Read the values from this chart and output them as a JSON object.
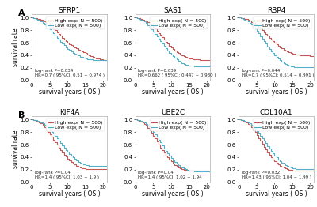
{
  "panels": [
    {
      "row": 0,
      "col": 0,
      "title": "SFRP1",
      "panel_label": "A",
      "annotation": "log-rank P=0.034\nHR=0.7 ( 95%CI: 0.51 ~ 0.974 )",
      "high_color": "#c0504d",
      "low_color": "#4bacc6",
      "legend": [
        "High exp( N = 500)",
        "Low exp( N = 500)"
      ],
      "high_curve_x": [
        0,
        0.5,
        1,
        1.5,
        2,
        2.5,
        3,
        3.5,
        4,
        4.5,
        5,
        5.5,
        6,
        6.5,
        7,
        7.5,
        8,
        8.5,
        9,
        9.5,
        10,
        10.5,
        11,
        11.5,
        12,
        12.5,
        13,
        13.5,
        14,
        14.5,
        15,
        15.5,
        16,
        16.5,
        17,
        17.5,
        18,
        18.5,
        19,
        19.5,
        20,
        21
      ],
      "high_curve_y": [
        1.0,
        0.995,
        0.99,
        0.983,
        0.975,
        0.965,
        0.952,
        0.937,
        0.92,
        0.9,
        0.878,
        0.854,
        0.828,
        0.8,
        0.77,
        0.74,
        0.71,
        0.68,
        0.65,
        0.625,
        0.6,
        0.578,
        0.558,
        0.54,
        0.522,
        0.506,
        0.49,
        0.475,
        0.46,
        0.445,
        0.43,
        0.415,
        0.4,
        0.385,
        0.372,
        0.36,
        0.35,
        0.342,
        0.335,
        0.33,
        0.325,
        0.32
      ],
      "low_curve_x": [
        0,
        0.5,
        1,
        1.5,
        2,
        2.5,
        3,
        3.5,
        4,
        4.5,
        5,
        5.5,
        6,
        6.5,
        7,
        7.5,
        8,
        8.5,
        9,
        9.5,
        10,
        10.5,
        11,
        11.5,
        12,
        12.5,
        13,
        13.5,
        14,
        14.5,
        15,
        15.5,
        16,
        16.5,
        17,
        17.5,
        18,
        18.5,
        19,
        19.5,
        20,
        21
      ],
      "low_curve_y": [
        1.0,
        0.993,
        0.984,
        0.972,
        0.957,
        0.939,
        0.918,
        0.895,
        0.869,
        0.841,
        0.811,
        0.78,
        0.748,
        0.715,
        0.682,
        0.649,
        0.617,
        0.586,
        0.557,
        0.53,
        0.504,
        0.481,
        0.459,
        0.44,
        0.422,
        0.406,
        0.392,
        0.379,
        0.367,
        0.357,
        0.348,
        0.341,
        0.335,
        0.331,
        0.328,
        0.326,
        0.324,
        0.323,
        0.322,
        0.321,
        0.32,
        0.319
      ]
    },
    {
      "row": 0,
      "col": 1,
      "title": "SAS1",
      "panel_label": "",
      "annotation": "log-rank P=0.039\nHR=0.662 ( 95%CI: 0.447 ~ 0.980 )",
      "high_color": "#c0504d",
      "low_color": "#4bacc6",
      "legend": [
        "High exp( N = 500)",
        "Low exp( N = 500)"
      ],
      "high_curve_x": [
        0,
        0.5,
        1,
        1.5,
        2,
        2.5,
        3,
        3.5,
        4,
        4.5,
        5,
        5.5,
        6,
        6.5,
        7,
        7.5,
        8,
        8.5,
        9,
        9.5,
        10,
        10.5,
        11,
        11.5,
        12,
        12.5,
        13,
        13.5,
        14,
        14.5,
        15,
        15.5,
        16,
        16.5,
        17,
        17.5,
        18,
        18.5,
        19,
        19.5,
        20,
        21
      ],
      "high_curve_y": [
        1.0,
        0.995,
        0.99,
        0.982,
        0.972,
        0.959,
        0.943,
        0.924,
        0.902,
        0.877,
        0.85,
        0.821,
        0.79,
        0.757,
        0.723,
        0.688,
        0.653,
        0.619,
        0.586,
        0.555,
        0.525,
        0.498,
        0.473,
        0.45,
        0.43,
        0.412,
        0.396,
        0.382,
        0.37,
        0.36,
        0.351,
        0.344,
        0.338,
        0.334,
        0.331,
        0.329,
        0.328,
        0.327,
        0.327,
        0.326,
        0.326,
        0.325
      ],
      "low_curve_x": [
        0,
        0.5,
        1,
        1.5,
        2,
        2.5,
        3,
        3.5,
        4,
        4.5,
        5,
        5.5,
        6,
        6.5,
        7,
        7.5,
        8,
        8.5,
        9,
        9.5,
        10,
        10.5,
        11,
        11.5,
        12,
        12.5,
        13,
        13.5,
        14,
        14.5,
        15,
        15.5,
        16,
        16.5,
        17,
        17.5,
        18,
        18.5,
        19,
        19.5,
        20,
        21
      ],
      "low_curve_y": [
        1.0,
        0.993,
        0.984,
        0.971,
        0.955,
        0.935,
        0.91,
        0.882,
        0.851,
        0.817,
        0.781,
        0.743,
        0.704,
        0.664,
        0.624,
        0.584,
        0.545,
        0.508,
        0.473,
        0.44,
        0.409,
        0.381,
        0.355,
        0.332,
        0.311,
        0.293,
        0.277,
        0.264,
        0.253,
        0.244,
        0.237,
        0.232,
        0.229,
        0.227,
        0.226,
        0.225,
        0.225,
        0.224,
        0.224,
        0.223,
        0.223,
        0.222
      ]
    },
    {
      "row": 0,
      "col": 2,
      "title": "RBP4",
      "panel_label": "",
      "annotation": "log-rank P=0.044\nHR=0.7 ( 95%CI: 0.514 ~ 0.991 )",
      "high_color": "#c0504d",
      "low_color": "#4bacc6",
      "legend": [
        "High exp( N = 500)",
        "Low exp( N = 500)"
      ],
      "high_curve_x": [
        0,
        0.5,
        1,
        1.5,
        2,
        2.5,
        3,
        3.5,
        4,
        4.5,
        5,
        5.5,
        6,
        6.5,
        7,
        7.5,
        8,
        8.5,
        9,
        9.5,
        10,
        10.5,
        11,
        11.5,
        12,
        12.5,
        13,
        13.5,
        14,
        14.5,
        15,
        15.5,
        16,
        16.5,
        17,
        17.5,
        18,
        18.5,
        19,
        19.5,
        20,
        21
      ],
      "high_curve_y": [
        1.0,
        0.995,
        0.99,
        0.983,
        0.974,
        0.963,
        0.949,
        0.933,
        0.915,
        0.895,
        0.873,
        0.849,
        0.824,
        0.797,
        0.769,
        0.74,
        0.711,
        0.682,
        0.653,
        0.626,
        0.599,
        0.574,
        0.551,
        0.529,
        0.509,
        0.491,
        0.475,
        0.46,
        0.447,
        0.436,
        0.426,
        0.418,
        0.412,
        0.407,
        0.403,
        0.4,
        0.397,
        0.395,
        0.393,
        0.392,
        0.391,
        0.39
      ],
      "low_curve_x": [
        0,
        0.5,
        1,
        1.5,
        2,
        2.5,
        3,
        3.5,
        4,
        4.5,
        5,
        5.5,
        6,
        6.5,
        7,
        7.5,
        8,
        8.5,
        9,
        9.5,
        10,
        10.5,
        11,
        11.5,
        12,
        12.5,
        13,
        13.5,
        14,
        14.5,
        15,
        15.5,
        16,
        16.5,
        17,
        17.5,
        18,
        18.5,
        19,
        19.5,
        20,
        21
      ],
      "low_curve_y": [
        1.0,
        0.993,
        0.984,
        0.972,
        0.956,
        0.937,
        0.913,
        0.886,
        0.855,
        0.821,
        0.784,
        0.746,
        0.706,
        0.665,
        0.624,
        0.583,
        0.543,
        0.504,
        0.467,
        0.432,
        0.399,
        0.369,
        0.342,
        0.317,
        0.295,
        0.276,
        0.26,
        0.246,
        0.235,
        0.226,
        0.219,
        0.214,
        0.211,
        0.209,
        0.208,
        0.208,
        0.208,
        0.207,
        0.207,
        0.207,
        0.207,
        0.207
      ]
    },
    {
      "row": 1,
      "col": 0,
      "title": "KIF4A",
      "panel_label": "B",
      "annotation": "log-rank P=0.04\nHR=1.4 ( 95%CI: 1.03 ~ 1.9 )",
      "high_color": "#c0504d",
      "low_color": "#4bacc6",
      "legend": [
        "High exp( N = 500)",
        "Low exp( N = 500)"
      ],
      "high_curve_x": [
        0,
        0.5,
        1,
        1.5,
        2,
        2.5,
        3,
        3.5,
        4,
        4.5,
        5,
        5.5,
        6,
        6.5,
        7,
        7.5,
        8,
        8.5,
        9,
        9.5,
        10,
        10.5,
        11,
        11.5,
        12,
        12.5,
        13,
        13.5,
        14,
        14.5,
        15,
        15.5,
        16,
        16.5,
        17,
        17.5,
        18,
        18.5,
        19,
        19.5,
        20,
        21
      ],
      "high_curve_y": [
        1.0,
        0.993,
        0.984,
        0.972,
        0.956,
        0.935,
        0.91,
        0.88,
        0.846,
        0.808,
        0.768,
        0.726,
        0.682,
        0.638,
        0.595,
        0.553,
        0.512,
        0.474,
        0.438,
        0.405,
        0.374,
        0.346,
        0.321,
        0.299,
        0.279,
        0.262,
        0.248,
        0.236,
        0.226,
        0.219,
        0.213,
        0.209,
        0.207,
        0.205,
        0.204,
        0.204,
        0.203,
        0.203,
        0.203,
        0.203,
        0.203,
        0.203
      ],
      "low_curve_x": [
        0,
        0.5,
        1,
        1.5,
        2,
        2.5,
        3,
        3.5,
        4,
        4.5,
        5,
        5.5,
        6,
        6.5,
        7,
        7.5,
        8,
        8.5,
        9,
        9.5,
        10,
        10.5,
        11,
        11.5,
        12,
        12.5,
        13,
        13.5,
        14,
        14.5,
        15,
        15.5,
        16,
        16.5,
        17,
        17.5,
        18,
        18.5,
        19,
        19.5,
        20,
        21
      ],
      "low_curve_y": [
        1.0,
        0.995,
        0.99,
        0.982,
        0.971,
        0.957,
        0.94,
        0.92,
        0.896,
        0.869,
        0.839,
        0.807,
        0.773,
        0.737,
        0.7,
        0.662,
        0.624,
        0.587,
        0.551,
        0.516,
        0.483,
        0.452,
        0.422,
        0.395,
        0.37,
        0.348,
        0.328,
        0.311,
        0.297,
        0.285,
        0.275,
        0.268,
        0.263,
        0.26,
        0.258,
        0.257,
        0.256,
        0.256,
        0.256,
        0.256,
        0.256,
        0.255
      ]
    },
    {
      "row": 1,
      "col": 1,
      "title": "UBE2C",
      "panel_label": "",
      "annotation": "log-rank P=0.04\nHR=1.4 ( 95%CI: 1.02 ~ 1.94 )",
      "high_color": "#c0504d",
      "low_color": "#4bacc6",
      "legend": [
        "High exp( N = 500)",
        "Low exp( N = 500)"
      ],
      "high_curve_x": [
        0,
        0.5,
        1,
        1.5,
        2,
        2.5,
        3,
        3.5,
        4,
        4.5,
        5,
        5.5,
        6,
        6.5,
        7,
        7.5,
        8,
        8.5,
        9,
        9.5,
        10,
        10.5,
        11,
        11.5,
        12,
        12.5,
        13,
        13.5,
        14,
        14.5,
        15,
        15.5,
        16,
        16.5,
        17,
        17.5,
        18,
        18.5,
        19,
        19.5,
        20,
        21
      ],
      "high_curve_y": [
        1.0,
        0.993,
        0.984,
        0.971,
        0.953,
        0.93,
        0.902,
        0.869,
        0.831,
        0.789,
        0.744,
        0.697,
        0.649,
        0.601,
        0.555,
        0.51,
        0.468,
        0.428,
        0.392,
        0.359,
        0.329,
        0.302,
        0.278,
        0.257,
        0.239,
        0.224,
        0.211,
        0.201,
        0.193,
        0.187,
        0.183,
        0.181,
        0.18,
        0.179,
        0.179,
        0.179,
        0.179,
        0.179,
        0.179,
        0.179,
        0.179,
        0.179
      ],
      "low_curve_x": [
        0,
        0.5,
        1,
        1.5,
        2,
        2.5,
        3,
        3.5,
        4,
        4.5,
        5,
        5.5,
        6,
        6.5,
        7,
        7.5,
        8,
        8.5,
        9,
        9.5,
        10,
        10.5,
        11,
        11.5,
        12,
        12.5,
        13,
        13.5,
        14,
        14.5,
        15,
        15.5,
        16,
        16.5,
        17,
        17.5,
        18,
        18.5,
        19,
        19.5,
        20,
        21
      ],
      "low_curve_y": [
        1.0,
        0.995,
        0.989,
        0.98,
        0.968,
        0.952,
        0.932,
        0.907,
        0.878,
        0.844,
        0.806,
        0.765,
        0.722,
        0.677,
        0.632,
        0.586,
        0.542,
        0.499,
        0.458,
        0.42,
        0.384,
        0.351,
        0.321,
        0.294,
        0.27,
        0.249,
        0.231,
        0.216,
        0.204,
        0.194,
        0.187,
        0.182,
        0.179,
        0.177,
        0.177,
        0.177,
        0.176,
        0.176,
        0.176,
        0.176,
        0.176,
        0.176
      ]
    },
    {
      "row": 1,
      "col": 2,
      "title": "COL10A1",
      "panel_label": "",
      "annotation": "log-rank P=0.032\nHR=1.43 ( 95%CI: 1.04 ~ 1.99 )",
      "high_color": "#c0504d",
      "low_color": "#4bacc6",
      "legend": [
        "High exp( N = 500)",
        "Low exp( N = 500)"
      ],
      "high_curve_x": [
        0,
        0.5,
        1,
        1.5,
        2,
        2.5,
        3,
        3.5,
        4,
        4.5,
        5,
        5.5,
        6,
        6.5,
        7,
        7.5,
        8,
        8.5,
        9,
        9.5,
        10,
        10.5,
        11,
        11.5,
        12,
        12.5,
        13,
        13.5,
        14,
        14.5,
        15,
        15.5,
        16,
        16.5,
        17,
        17.5,
        18,
        18.5,
        19,
        19.5,
        20,
        21
      ],
      "high_curve_y": [
        1.0,
        0.993,
        0.984,
        0.971,
        0.954,
        0.932,
        0.905,
        0.873,
        0.836,
        0.796,
        0.752,
        0.706,
        0.659,
        0.612,
        0.565,
        0.52,
        0.477,
        0.436,
        0.399,
        0.365,
        0.334,
        0.307,
        0.282,
        0.261,
        0.243,
        0.228,
        0.216,
        0.206,
        0.198,
        0.193,
        0.189,
        0.186,
        0.185,
        0.184,
        0.184,
        0.184,
        0.184,
        0.183,
        0.183,
        0.183,
        0.183,
        0.183
      ],
      "low_curve_x": [
        0,
        0.5,
        1,
        1.5,
        2,
        2.5,
        3,
        3.5,
        4,
        4.5,
        5,
        5.5,
        6,
        6.5,
        7,
        7.5,
        8,
        8.5,
        9,
        9.5,
        10,
        10.5,
        11,
        11.5,
        12,
        12.5,
        13,
        13.5,
        14,
        14.5,
        15,
        15.5,
        16,
        16.5,
        17,
        17.5,
        18,
        18.5,
        19,
        19.5,
        20,
        21
      ],
      "low_curve_y": [
        1.0,
        0.995,
        0.989,
        0.98,
        0.969,
        0.954,
        0.935,
        0.912,
        0.885,
        0.854,
        0.82,
        0.783,
        0.744,
        0.703,
        0.661,
        0.619,
        0.578,
        0.537,
        0.498,
        0.461,
        0.427,
        0.394,
        0.364,
        0.337,
        0.313,
        0.291,
        0.272,
        0.256,
        0.243,
        0.232,
        0.224,
        0.218,
        0.214,
        0.212,
        0.211,
        0.211,
        0.21,
        0.21,
        0.21,
        0.21,
        0.21,
        0.21
      ]
    }
  ],
  "xlabel": "survival years ( OS )",
  "ylabel": "survival rate",
  "xlim": [
    0,
    21
  ],
  "ylim": [
    0.0,
    1.05
  ],
  "xticks": [
    0,
    5,
    10,
    15,
    20
  ],
  "yticks": [
    0.0,
    0.2,
    0.4,
    0.6,
    0.8,
    1.0
  ],
  "bg_color": "#ffffff",
  "tick_fontsize": 5,
  "label_fontsize": 5.5,
  "title_fontsize": 6.5,
  "legend_fontsize": 4.5,
  "annot_fontsize": 4.0
}
